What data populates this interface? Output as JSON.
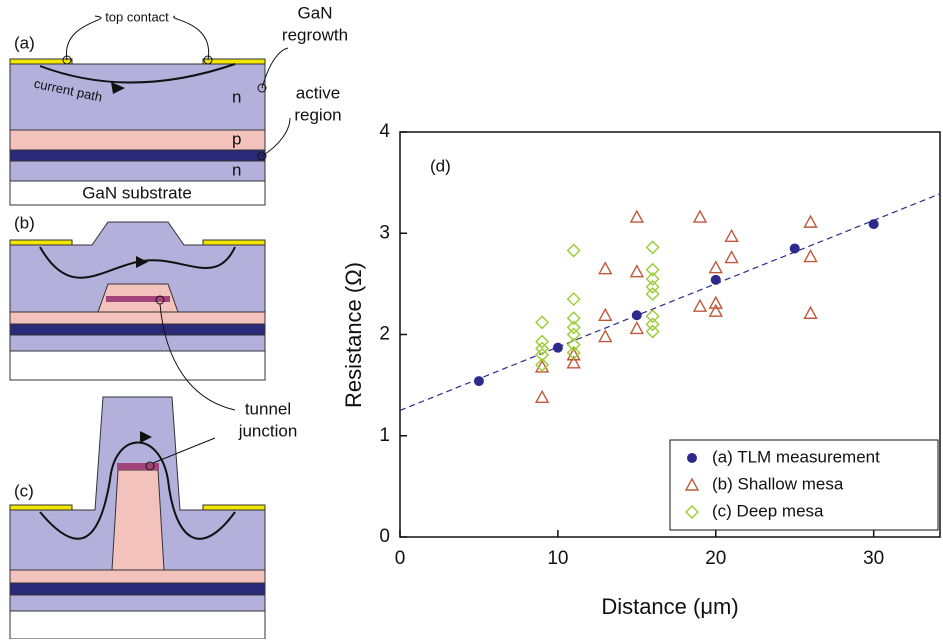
{
  "diagram": {
    "a": {
      "label": "(a)",
      "top_contact": "top contact",
      "regrowth": [
        "GaN",
        "regrowth"
      ],
      "current_path": "current path",
      "n_top": "n",
      "active": [
        "active",
        "region"
      ],
      "p": "p",
      "n_bottom": "n",
      "substrate": "GaN substrate"
    },
    "b": {
      "label": "(b)",
      "tunnel": [
        "tunnel",
        "junction"
      ]
    },
    "c": {
      "label": "(c)"
    }
  },
  "chart_data": {
    "type": "scatter",
    "panel_label": "(d)",
    "x_label": "Distance (μm)",
    "y_label": "Resistance (Ω)",
    "xlim": [
      0,
      34.2
    ],
    "ylim": [
      0,
      4
    ],
    "xticks": [
      0,
      10,
      20,
      30
    ],
    "yticks": [
      0,
      1,
      2,
      3,
      4
    ],
    "legend": "lower right",
    "series": [
      {
        "name": "(a) TLM measurement",
        "marker": "circle",
        "color": "#2e2a8c",
        "x": [
          5,
          10,
          15,
          20,
          25,
          30
        ],
        "values": [
          1.54,
          1.87,
          2.19,
          2.54,
          2.85,
          3.09
        ]
      },
      {
        "name": "(b) Shallow mesa",
        "marker": "triangle",
        "color": "#c0583a",
        "x": [
          9,
          9,
          11,
          11,
          13,
          13,
          13,
          15,
          15,
          15,
          19,
          19,
          20,
          20,
          20,
          21,
          21,
          26,
          26,
          26
        ],
        "values": [
          1.38,
          1.68,
          1.72,
          1.8,
          1.98,
          2.19,
          2.65,
          2.06,
          2.62,
          3.16,
          2.28,
          3.16,
          2.23,
          2.31,
          2.66,
          2.76,
          2.97,
          2.21,
          2.77,
          3.11
        ]
      },
      {
        "name": "(c) Deep mesa",
        "marker": "diamond",
        "color": "#9acd32",
        "x": [
          9,
          9,
          9,
          9,
          9,
          11,
          11,
          11,
          11,
          11,
          11,
          11,
          16,
          16,
          16,
          16,
          16,
          16,
          16,
          16
        ],
        "values": [
          1.7,
          1.8,
          1.86,
          1.93,
          2.12,
          1.82,
          1.9,
          2.0,
          2.07,
          2.16,
          2.35,
          2.83,
          2.03,
          2.1,
          2.18,
          2.4,
          2.47,
          2.55,
          2.64,
          2.86
        ]
      }
    ],
    "trend": {
      "color": "#2e2a8c",
      "x": [
        0,
        34.2
      ],
      "values": [
        1.25,
        3.39
      ]
    }
  }
}
